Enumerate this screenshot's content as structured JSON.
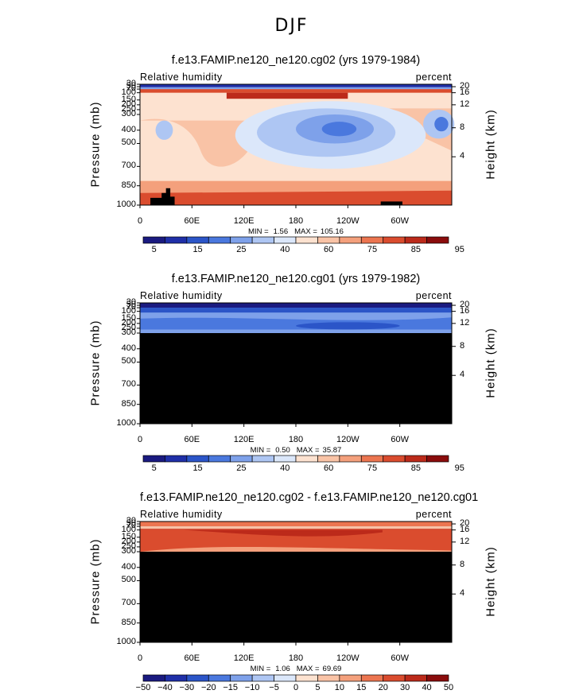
{
  "figure_title": "DJF",
  "colors": {
    "rh_scale": [
      "#1a1a80",
      "#1f2fa8",
      "#2b55c8",
      "#4a78de",
      "#7ea1ea",
      "#aec6f3",
      "#dbe7fa",
      "#fde2d0",
      "#f9c3a6",
      "#f4a07c",
      "#ec7550",
      "#da4c2e",
      "#bc2a1a",
      "#8a0c0c"
    ],
    "diff_scale": [
      "#1a1a80",
      "#1f2fa8",
      "#2b55c8",
      "#4a78de",
      "#7ea1ea",
      "#aec6f3",
      "#dbe7fa",
      "#fde2d0",
      "#f9c3a6",
      "#f4a07c",
      "#ec7550",
      "#da4c2e",
      "#bc2a1a",
      "#8a0c0c"
    ]
  },
  "chart_data": [
    {
      "type": "heatmap",
      "title": "f.e13.FAMIP.ne120_ne120.cg02 (yrs 1979-1984)",
      "left_string": "Relative humidity",
      "right_string": "percent",
      "ylabel": "Pressure (mb)",
      "ylabel_right": "Height (km)",
      "x_ticks": [
        "0",
        "60E",
        "120E",
        "180",
        "120W",
        "60W"
      ],
      "y_ticks": [
        "30",
        "50",
        "70",
        "100",
        "150",
        "200",
        "250",
        "300",
        "400",
        "500",
        "700",
        "850",
        "1000"
      ],
      "height_ticks": [
        "20",
        "16",
        "12",
        "8",
        "4"
      ],
      "min_label": "MIN =",
      "min_value": "1.56",
      "max_label": "MAX =",
      "max_value": "105.16",
      "colorbar_labels": [
        "5",
        "15",
        "25",
        "40",
        "60",
        "75",
        "85",
        "95"
      ]
    },
    {
      "type": "heatmap",
      "title": "f.e13.FAMIP.ne120_ne120.cg01 (yrs 1979-1982)",
      "left_string": "Relative humidity",
      "right_string": "percent",
      "ylabel": "Pressure (mb)",
      "ylabel_right": "Height (km)",
      "x_ticks": [
        "0",
        "60E",
        "120E",
        "180",
        "120W",
        "60W"
      ],
      "y_ticks": [
        "30",
        "50",
        "70",
        "100",
        "150",
        "200",
        "250",
        "300",
        "400",
        "500",
        "700",
        "850",
        "1000"
      ],
      "height_ticks": [
        "20",
        "16",
        "12",
        "8",
        "4"
      ],
      "min_label": "MIN =",
      "min_value": "0.50",
      "max_label": "MAX =",
      "max_value": "35.87",
      "colorbar_labels": [
        "5",
        "15",
        "25",
        "40",
        "60",
        "75",
        "85",
        "95"
      ]
    },
    {
      "type": "heatmap",
      "title": "f.e13.FAMIP.ne120_ne120.cg02 - f.e13.FAMIP.ne120_ne120.cg01",
      "left_string": "Relative humidity",
      "right_string": "percent",
      "ylabel": "Pressure (mb)",
      "ylabel_right": "Height (km)",
      "x_ticks": [
        "0",
        "60E",
        "120E",
        "180",
        "120W",
        "60W"
      ],
      "y_ticks": [
        "30",
        "50",
        "70",
        "100",
        "150",
        "200",
        "250",
        "300",
        "400",
        "500",
        "700",
        "850",
        "1000"
      ],
      "height_ticks": [
        "20",
        "16",
        "12",
        "8",
        "4"
      ],
      "min_label": "MIN =",
      "min_value": "1.06",
      "max_label": "MAX =",
      "max_value": "69.69",
      "colorbar_labels": [
        "−50",
        "−40",
        "−30",
        "−20",
        "−15",
        "−10",
        "−5",
        "0",
        "5",
        "10",
        "15",
        "20",
        "30",
        "40",
        "50"
      ]
    }
  ]
}
